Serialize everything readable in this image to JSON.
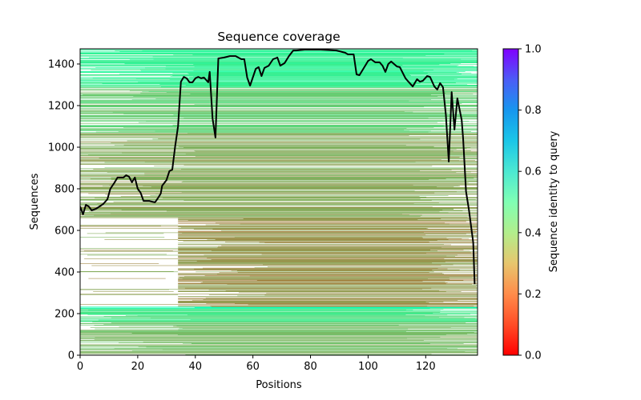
{
  "chart_data": {
    "type": "heatmap",
    "title": "Sequence coverage",
    "xlabel": "Positions",
    "ylabel": "Sequences",
    "xlim": [
      0,
      138
    ],
    "ylim": [
      0,
      1473
    ],
    "xticks": [
      0,
      20,
      40,
      60,
      80,
      100,
      120
    ],
    "yticks": [
      0,
      200,
      400,
      600,
      800,
      1000,
      1200,
      1400
    ],
    "colorbar": {
      "label": "Sequence identity to query",
      "range": [
        0.0,
        1.0
      ],
      "ticks": [
        "0.0",
        "0.2",
        "0.4",
        "0.6",
        "0.8",
        "1.0"
      ],
      "colormap": "rainbow_r"
    },
    "heatmap_bands": [
      {
        "seq_from": 0,
        "seq_to": 60,
        "pos_from": 0,
        "pos_to": 138,
        "identity": 0.26,
        "density": 0.8
      },
      {
        "seq_from": 60,
        "seq_to": 160,
        "pos_from": 0,
        "pos_to": 138,
        "identity": 0.27,
        "density": 0.85
      },
      {
        "seq_from": 160,
        "seq_to": 225,
        "pos_from": 0,
        "pos_to": 138,
        "identity": 0.36,
        "density": 0.95
      },
      {
        "seq_from": 225,
        "seq_to": 232,
        "pos_from": 0,
        "pos_to": 138,
        "identity": 0.5,
        "density": 1.0
      },
      {
        "seq_from": 232,
        "seq_to": 660,
        "pos_from": 34,
        "pos_to": 138,
        "identity": 0.2,
        "density": 0.85
      },
      {
        "seq_from": 232,
        "seq_to": 660,
        "pos_from": 0,
        "pos_to": 34,
        "identity": 0.22,
        "density": 0.12
      },
      {
        "seq_from": 660,
        "seq_to": 1070,
        "pos_from": 0,
        "pos_to": 138,
        "identity": 0.23,
        "density": 0.8
      },
      {
        "seq_from": 1070,
        "seq_to": 1290,
        "pos_from": 0,
        "pos_to": 138,
        "identity": 0.3,
        "density": 0.85
      },
      {
        "seq_from": 1290,
        "seq_to": 1473,
        "pos_from": 0,
        "pos_to": 138,
        "identity": 0.4,
        "density": 0.95
      }
    ],
    "series": [
      {
        "name": "coverage",
        "color": "#000000",
        "x": [
          0,
          1,
          2,
          3,
          4,
          5.5,
          8,
          9.5,
          10.5,
          12,
          13,
          15,
          16,
          17,
          18,
          19,
          20,
          21,
          22,
          24,
          25,
          26,
          27,
          28,
          28.5,
          30,
          31,
          32,
          33,
          34,
          35,
          36,
          37,
          38,
          39,
          40,
          41,
          42,
          43,
          44.5,
          45,
          46,
          47,
          48,
          50,
          52,
          54,
          56,
          57,
          58,
          59,
          61,
          62,
          63,
          64,
          65.5,
          67,
          68.5,
          69.5,
          71,
          72.5,
          74,
          75,
          78,
          83.5,
          89,
          92,
          93,
          95,
          96,
          97,
          99,
          100,
          101,
          102.5,
          104,
          105,
          106,
          107,
          108,
          110,
          111,
          113,
          114,
          115.5,
          117,
          118,
          119,
          120.5,
          121.5,
          123,
          124,
          125,
          126,
          127,
          128,
          129,
          130,
          131,
          132.5,
          133,
          134,
          135,
          136.5,
          137
        ],
        "y": [
          715,
          677,
          723,
          715,
          696,
          704,
          727,
          750,
          800,
          831,
          854,
          854,
          865,
          858,
          831,
          854,
          800,
          781,
          742,
          742,
          738,
          735,
          754,
          777,
          815,
          842,
          885,
          892,
          1004,
          1100,
          1315,
          1338,
          1331,
          1312,
          1312,
          1331,
          1338,
          1331,
          1335,
          1312,
          1362,
          1138,
          1046,
          1427,
          1431,
          1438,
          1438,
          1423,
          1423,
          1335,
          1296,
          1377,
          1385,
          1342,
          1381,
          1392,
          1423,
          1431,
          1392,
          1404,
          1438,
          1465,
          1465,
          1469,
          1469,
          1465,
          1454,
          1446,
          1446,
          1350,
          1346,
          1392,
          1415,
          1423,
          1408,
          1408,
          1392,
          1362,
          1400,
          1412,
          1388,
          1385,
          1331,
          1315,
          1292,
          1327,
          1315,
          1319,
          1342,
          1338,
          1292,
          1277,
          1308,
          1288,
          1154,
          931,
          1265,
          1085,
          1235,
          1131,
          1042,
          788,
          700,
          542,
          342
        ]
      }
    ]
  }
}
